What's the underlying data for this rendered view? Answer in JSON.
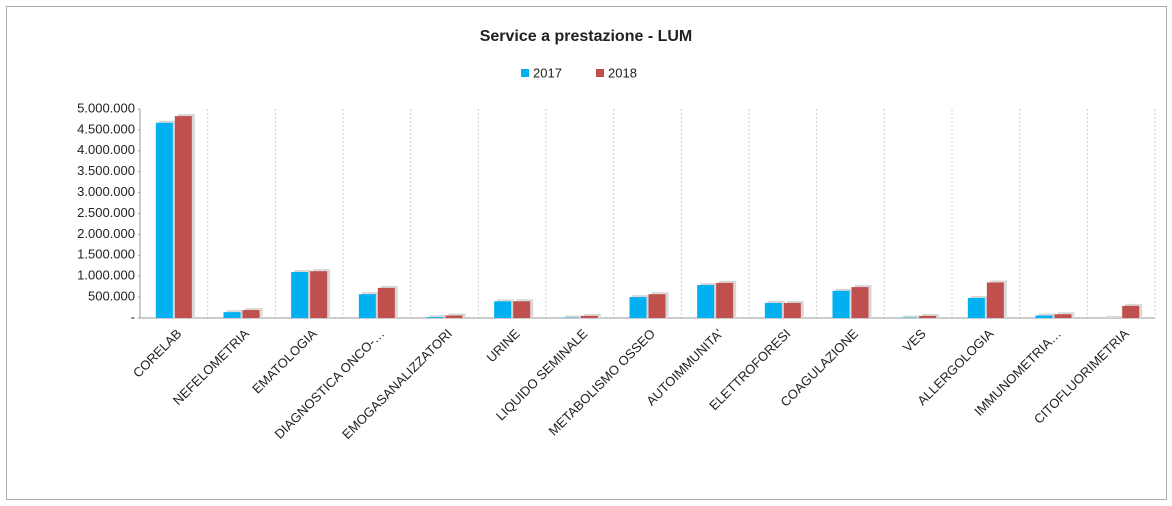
{
  "chart_data": {
    "type": "bar",
    "title": "Service a prestazione - LUM",
    "categories": [
      "CORELAB",
      "NEFELOMETRIA",
      "EMATOLOGIA",
      "DIAGNOSTICA ONCO-…",
      "EMOGASANALIZZATORI",
      "URINE",
      "LIQUIDO SEMINALE",
      "METABOLISMO OSSEO",
      "AUTOIMMUNITA'",
      "ELETTROFORESI",
      "COAGULAZIONE",
      "VES",
      "ALLERGOLOGIA",
      "IMMUNOMETRIA…",
      "CITOFLUORIMETRIA"
    ],
    "series": [
      {
        "name": "2017",
        "color": "#00b0f0",
        "values": [
          4670000,
          140000,
          1100000,
          570000,
          20000,
          400000,
          10000,
          500000,
          790000,
          360000,
          650000,
          10000,
          480000,
          60000,
          0
        ]
      },
      {
        "name": "2018",
        "color": "#c0504d",
        "values": [
          4830000,
          190000,
          1120000,
          720000,
          60000,
          400000,
          50000,
          570000,
          840000,
          360000,
          740000,
          50000,
          850000,
          90000,
          290000
        ]
      }
    ],
    "ylim": [
      0,
      5000000
    ],
    "yticks": [
      {
        "value": 0,
        "label": "-"
      },
      {
        "value": 500000,
        "label": "500.000"
      },
      {
        "value": 1000000,
        "label": "1.000.000"
      },
      {
        "value": 1500000,
        "label": "1.500.000"
      },
      {
        "value": 2000000,
        "label": "2.000.000"
      },
      {
        "value": 2500000,
        "label": "2.500.000"
      },
      {
        "value": 3000000,
        "label": "3.000.000"
      },
      {
        "value": 3500000,
        "label": "3.500.000"
      },
      {
        "value": 4000000,
        "label": "4.000.000"
      },
      {
        "value": 4500000,
        "label": "4.500.000"
      },
      {
        "value": 5000000,
        "label": "5.000.000"
      }
    ],
    "grid": true,
    "legend": "top"
  }
}
